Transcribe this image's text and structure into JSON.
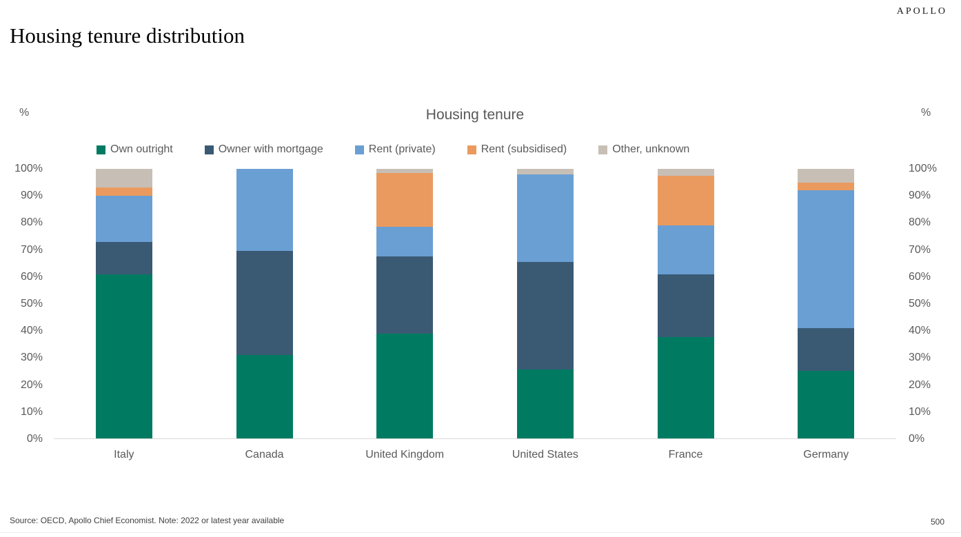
{
  "page": {
    "logo": "APOLLO",
    "title": "Housing tenure distribution",
    "footer_source": "Source: OECD, Apollo Chief Economist. Note: 2022 or latest year available",
    "page_number": "500"
  },
  "chart_data": {
    "type": "bar",
    "stacked": true,
    "title": "Housing tenure",
    "y_unit_label": "%",
    "legend_position": "top",
    "gridlines": false,
    "ylim": [
      0,
      100
    ],
    "yticks": [
      "100%",
      "90%",
      "80%",
      "70%",
      "60%",
      "50%",
      "40%",
      "30%",
      "20%",
      "10%",
      "0%"
    ],
    "categories": [
      "Italy",
      "Canada",
      "United Kingdom",
      "United States",
      "France",
      "Germany"
    ],
    "series": [
      {
        "name": "Own outright",
        "color": "#007B62",
        "values": [
          61,
          31,
          39,
          25.5,
          37.5,
          25
        ]
      },
      {
        "name": "Owner with mortgage",
        "color": "#3A5A74",
        "values": [
          12,
          38.5,
          28.5,
          40,
          23.5,
          16
        ]
      },
      {
        "name": "Rent (private)",
        "color": "#6A9FD3",
        "values": [
          17,
          30.5,
          11,
          32.5,
          18,
          51
        ]
      },
      {
        "name": "Rent (subsidised)",
        "color": "#EA9A5E",
        "values": [
          3,
          0,
          20,
          0,
          18.5,
          3
        ]
      },
      {
        "name": "Other, unknown",
        "color": "#C7BFB5",
        "values": [
          7,
          0,
          1.5,
          2,
          2.5,
          5
        ]
      }
    ]
  }
}
